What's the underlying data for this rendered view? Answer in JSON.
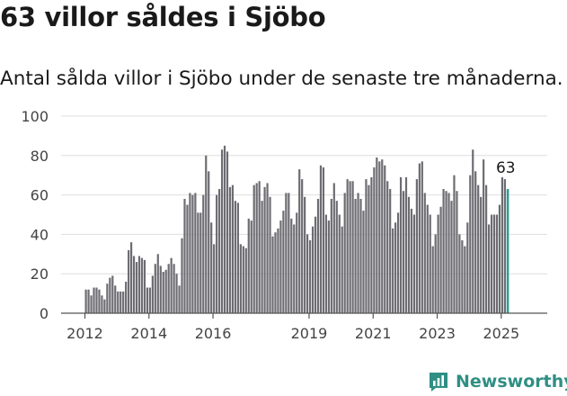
{
  "header": {
    "title": "63 villor såldes i Sjöbo",
    "subtitle": "Antal sålda villor i Sjöbo under de senaste tre månaderna."
  },
  "brand": {
    "name": "Newsworthy",
    "icon": "newsworthy-chart-icon",
    "color": "#2f8f83"
  },
  "colors": {
    "bar": "#6d6c72",
    "highlight": "#2e9c93",
    "grid": "#dedede",
    "axis": "#555555",
    "text": "#444444"
  },
  "chart_data": {
    "type": "bar",
    "title": "",
    "xlabel": "",
    "ylabel": "",
    "ylim": [
      0,
      100
    ],
    "yticks": [
      0,
      20,
      40,
      60,
      80,
      100
    ],
    "xticks": [
      "2012",
      "2014",
      "2016",
      "2019",
      "2021",
      "2023",
      "2025"
    ],
    "annotation": "63",
    "grid": true,
    "legend": "none",
    "start": "2012-01",
    "values": [
      12,
      12,
      9,
      13,
      13,
      12,
      9,
      7,
      15,
      18,
      19,
      14,
      11,
      11,
      11,
      16,
      32,
      36,
      29,
      26,
      29,
      28,
      27,
      13,
      13,
      19,
      25,
      30,
      24,
      21,
      22,
      25,
      28,
      25,
      20,
      14,
      38,
      58,
      55,
      61,
      60,
      61,
      51,
      51,
      60,
      80,
      72,
      46,
      35,
      60,
      63,
      83,
      85,
      82,
      64,
      65,
      57,
      56,
      35,
      34,
      33,
      48,
      47,
      65,
      66,
      67,
      57,
      64,
      66,
      59,
      39,
      41,
      43,
      47,
      52,
      61,
      61,
      48,
      45,
      51,
      73,
      68,
      59,
      40,
      37,
      44,
      49,
      58,
      75,
      74,
      50,
      47,
      58,
      66,
      57,
      50,
      44,
      61,
      68,
      67,
      67,
      58,
      61,
      58,
      52,
      68,
      65,
      69,
      74,
      79,
      77,
      78,
      75,
      67,
      63,
      43,
      46,
      51,
      69,
      62,
      69,
      59,
      53,
      50,
      68,
      76,
      77,
      61,
      55,
      50,
      34,
      40,
      50,
      54,
      63,
      62,
      61,
      57,
      70,
      62,
      40,
      37,
      34,
      46,
      70,
      83,
      72,
      65,
      59,
      78,
      65,
      45,
      50,
      50,
      50,
      55,
      69,
      68,
      63
    ]
  }
}
